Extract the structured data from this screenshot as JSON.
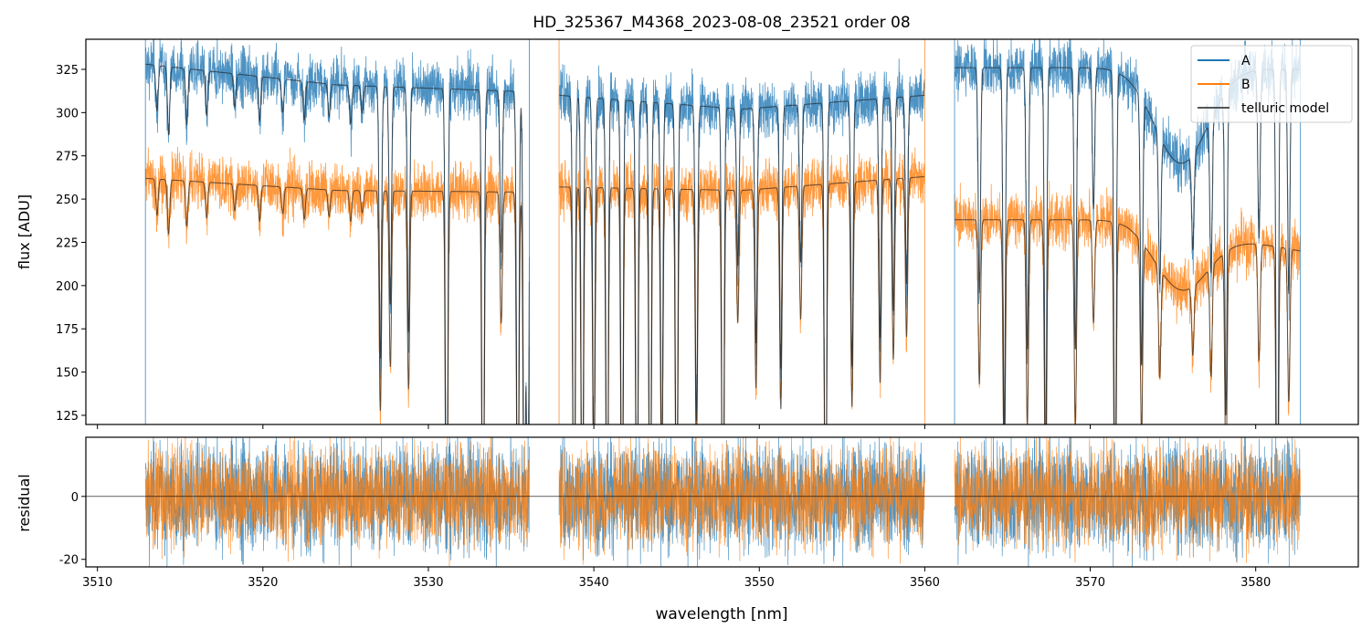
{
  "chart_data": [
    {
      "type": "line",
      "title": "HD_325367_M4368_2023-08-08_23521  order 08",
      "xlabel": "",
      "ylabel": "flux [ADU]",
      "xlim": [
        3509.3,
        3586.2
      ],
      "ylim": [
        119.7,
        342.4
      ],
      "xticks": [
        3510,
        3520,
        3530,
        3540,
        3550,
        3560,
        3570,
        3580
      ],
      "yticks": [
        125,
        150,
        175,
        200,
        225,
        250,
        275,
        300,
        325
      ],
      "grid": false,
      "legend": {
        "position": "top-right",
        "entries": [
          "A",
          "B",
          "telluric model"
        ]
      },
      "colors": {
        "A": "#1f77b4",
        "B": "#ff7f0e",
        "telluric model": "#333333"
      },
      "segments": [
        {
          "range": [
            3512.9,
            3536.1
          ],
          "continuum_A": [
            328,
            316,
            312
          ],
          "continuum_B": [
            262,
            255,
            254
          ]
        },
        {
          "range": [
            3537.9,
            3560.0
          ],
          "continuum_A": [
            310,
            302,
            310
          ],
          "continuum_B": [
            257,
            255,
            263
          ]
        },
        {
          "range": [
            3561.8,
            3582.7
          ],
          "continuum_A": [
            326,
            326,
            325
          ],
          "continuum_B": [
            238,
            238,
            220
          ]
        }
      ],
      "broad_dip": {
        "center": 3575.5,
        "width": 1.6,
        "depth_A": 55,
        "depth_B": 35
      },
      "absorption_lines": [
        [
          3513.6,
          0.08
        ],
        [
          3514.3,
          0.12
        ],
        [
          3515.4,
          0.1
        ],
        [
          3516.6,
          0.08
        ],
        [
          3518.3,
          0.06
        ],
        [
          3519.8,
          0.08
        ],
        [
          3521.2,
          0.06
        ],
        [
          3522.5,
          0.07
        ],
        [
          3524.0,
          0.06
        ],
        [
          3525.3,
          0.07
        ],
        [
          3526.0,
          0.05
        ],
        [
          3527.1,
          0.5
        ],
        [
          3527.7,
          0.4
        ],
        [
          3528.8,
          0.45
        ],
        [
          3531.1,
          0.95
        ],
        [
          3533.3,
          0.95
        ],
        [
          3534.4,
          0.3
        ],
        [
          3535.4,
          0.9
        ],
        [
          3535.8,
          0.9
        ],
        [
          3536.0,
          0.9
        ],
        [
          3538.8,
          0.95
        ],
        [
          3539.3,
          0.9
        ],
        [
          3540.0,
          0.7
        ],
        [
          3540.8,
          0.9
        ],
        [
          3541.7,
          0.9
        ],
        [
          3542.6,
          0.9
        ],
        [
          3543.4,
          0.9
        ],
        [
          3544.1,
          0.7
        ],
        [
          3545.0,
          0.9
        ],
        [
          3546.2,
          0.6
        ],
        [
          3547.8,
          0.95
        ],
        [
          3548.7,
          0.3
        ],
        [
          3549.8,
          0.45
        ],
        [
          3551.3,
          0.5
        ],
        [
          3552.5,
          0.3
        ],
        [
          3554.0,
          0.9
        ],
        [
          3555.6,
          0.5
        ],
        [
          3557.3,
          0.45
        ],
        [
          3558.1,
          0.4
        ],
        [
          3558.9,
          0.35
        ],
        [
          3563.3,
          0.4
        ],
        [
          3564.8,
          0.65
        ],
        [
          3566.2,
          0.5
        ],
        [
          3567.3,
          0.7
        ],
        [
          3569.1,
          0.5
        ],
        [
          3570.2,
          0.25
        ],
        [
          3571.5,
          0.85
        ],
        [
          3573.1,
          0.5
        ],
        [
          3574.2,
          0.3
        ],
        [
          3576.2,
          0.2
        ],
        [
          3577.3,
          0.3
        ],
        [
          3578.2,
          0.6
        ],
        [
          3580.2,
          0.3
        ],
        [
          3581.3,
          0.95
        ],
        [
          3582.0,
          0.4
        ]
      ],
      "series": [
        {
          "name": "A"
        },
        {
          "name": "B"
        },
        {
          "name": "telluric model"
        }
      ]
    },
    {
      "type": "line",
      "xlabel": "wavelength [nm]",
      "ylabel": "residual",
      "xlim": [
        3509.3,
        3586.2
      ],
      "ylim": [
        -22.4,
        18.8
      ],
      "xticks": [
        3510,
        3520,
        3530,
        3540,
        3550,
        3560,
        3570,
        3580
      ],
      "yticks": [
        -20,
        0
      ],
      "residual_scatter": 8,
      "series": [
        {
          "name": "A"
        },
        {
          "name": "B"
        }
      ]
    }
  ]
}
